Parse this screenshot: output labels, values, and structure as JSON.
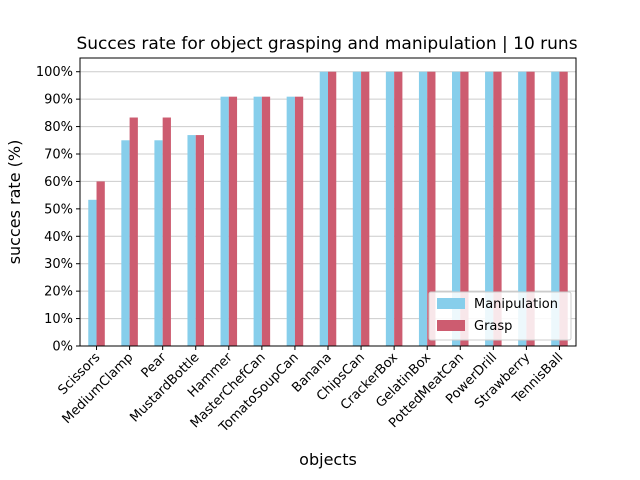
{
  "chart_data": {
    "type": "bar",
    "title": "Succes rate for object grasping and manipulation | 10 runs",
    "xlabel": "objects",
    "ylabel": "succes rate (%)",
    "ylim": [
      0,
      105
    ],
    "yticks": [
      "0%",
      "10%",
      "20%",
      "30%",
      "40%",
      "50%",
      "60%",
      "70%",
      "80%",
      "90%",
      "100%"
    ],
    "grid": "horizontal",
    "legend_position": "lower-right",
    "categories": [
      "Scissors",
      "MediumClamp",
      "Pear",
      "MustardBottle",
      "Hammer",
      "MasterChefCan",
      "TomatoSoupCan",
      "Banana",
      "ChipsCan",
      "CrackerBox",
      "GelatinBox",
      "PottedMeatCan",
      "PowerDrill",
      "Strawberry",
      "TennisBall"
    ],
    "series": [
      {
        "name": "Manipulation",
        "color": "#87ceeb",
        "values": [
          53.3,
          75,
          75,
          76.9,
          90.9,
          90.9,
          90.9,
          100,
          100,
          100,
          100,
          100,
          100,
          100,
          100
        ]
      },
      {
        "name": "Grasp",
        "color": "#cd5c70",
        "values": [
          60,
          83.3,
          83.3,
          76.9,
          90.9,
          90.9,
          90.9,
          100,
          100,
          100,
          100,
          100,
          100,
          100,
          100
        ]
      }
    ]
  }
}
